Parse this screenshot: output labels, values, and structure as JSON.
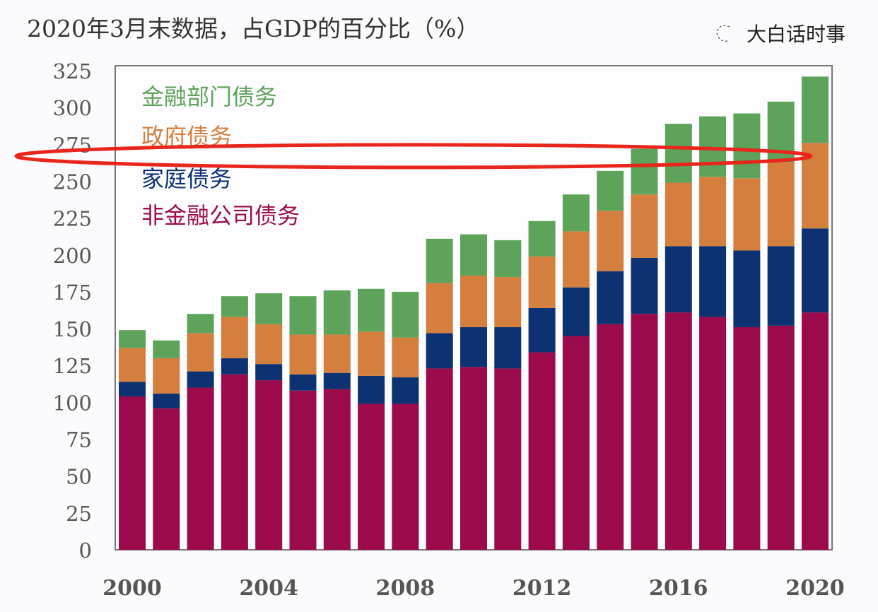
{
  "chart_data": {
    "type": "bar",
    "stacked": true,
    "title": "2020年3月末数据，占GDP的百分比（%）",
    "xlabel": "",
    "ylabel": "",
    "ylim": [
      0,
      325
    ],
    "yticks": [
      0,
      25,
      50,
      75,
      100,
      125,
      150,
      175,
      200,
      225,
      250,
      275,
      300,
      325
    ],
    "xtick_labels": [
      "2000",
      "2004",
      "2008",
      "2012",
      "2016",
      "2020"
    ],
    "categories": [
      "2000",
      "2001",
      "2002",
      "2003",
      "2004",
      "2005",
      "2006",
      "2007",
      "2008",
      "2009",
      "2010",
      "2011",
      "2012",
      "2013",
      "2014",
      "2015",
      "2016",
      "2017",
      "2018",
      "2019",
      "2020"
    ],
    "grid": false,
    "legend_position": "top-left",
    "series": [
      {
        "name": "非金融公司债务",
        "color": "#9b0a4b",
        "values": [
          104,
          96,
          110,
          119,
          115,
          108,
          109,
          99,
          99,
          123,
          124,
          123,
          134,
          145,
          153,
          160,
          161,
          158,
          151,
          152,
          161
        ]
      },
      {
        "name": "家庭债务",
        "color": "#0d3272",
        "values": [
          10,
          10,
          11,
          11,
          11,
          11,
          11,
          19,
          18,
          24,
          27,
          28,
          30,
          33,
          36,
          38,
          45,
          48,
          52,
          54,
          57
        ]
      },
      {
        "name": "政府债务",
        "color": "#d57f3e",
        "values": [
          23,
          24,
          26,
          28,
          27,
          27,
          26,
          30,
          27,
          34,
          35,
          34,
          35,
          38,
          41,
          43,
          43,
          47,
          49,
          57,
          58
        ]
      },
      {
        "name": "金融部门债务",
        "color": "#5ea35a",
        "values": [
          12,
          12,
          13,
          14,
          21,
          26,
          30,
          29,
          31,
          30,
          28,
          25,
          24,
          25,
          27,
          31,
          40,
          41,
          44,
          41,
          45
        ]
      }
    ],
    "annotation": {
      "type": "ellipse",
      "color": "#e8261c",
      "around_value": 268
    },
    "watermark": "大白话时事"
  }
}
